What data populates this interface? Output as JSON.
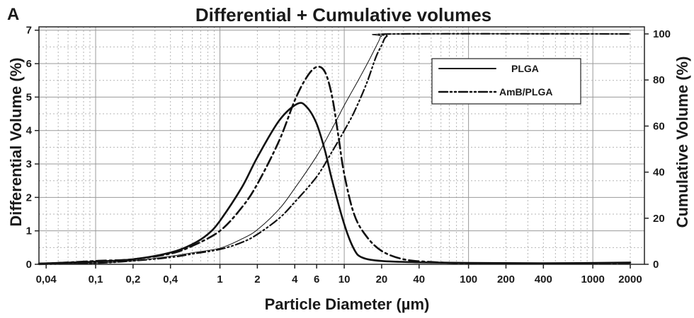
{
  "chart_data": {
    "type": "line",
    "panel_label": "A",
    "title": "Differential + Cumulative volumes",
    "xlabel": "Particle Diameter (µm)",
    "ylabel_left": "Differential Volume (%)",
    "ylabel_right": "Cumulative Volume (%)",
    "x_scale": "log",
    "xlim": [
      0.035,
      2600
    ],
    "ylim_left": [
      0,
      7.1
    ],
    "ylim_right": [
      0,
      100
    ],
    "grid": true,
    "legend_position": "top-right",
    "x_ticks": [
      {
        "value": 0.04,
        "label": "0,04"
      },
      {
        "value": 0.1,
        "label": "0,1"
      },
      {
        "value": 0.2,
        "label": "0,2"
      },
      {
        "value": 0.4,
        "label": "0,4"
      },
      {
        "value": 1,
        "label": "1"
      },
      {
        "value": 2,
        "label": "2"
      },
      {
        "value": 4,
        "label": "4"
      },
      {
        "value": 6,
        "label": "6"
      },
      {
        "value": 10,
        "label": "10"
      },
      {
        "value": 20,
        "label": "20"
      },
      {
        "value": 40,
        "label": "40"
      },
      {
        "value": 100,
        "label": "100"
      },
      {
        "value": 200,
        "label": "200"
      },
      {
        "value": 400,
        "label": "400"
      },
      {
        "value": 1000,
        "label": "1000"
      },
      {
        "value": 2000,
        "label": "2000"
      }
    ],
    "y_ticks_left": [
      {
        "value": 0,
        "label": "0"
      },
      {
        "value": 1,
        "label": "1"
      },
      {
        "value": 2,
        "label": "2"
      },
      {
        "value": 3,
        "label": "3"
      },
      {
        "value": 4,
        "label": "4"
      },
      {
        "value": 5,
        "label": "5"
      },
      {
        "value": 6,
        "label": "6"
      },
      {
        "value": 7,
        "label": "7"
      }
    ],
    "y_ticks_right": [
      {
        "value": 0,
        "label": "0"
      },
      {
        "value": 20,
        "label": "20"
      },
      {
        "value": 40,
        "label": "40"
      },
      {
        "value": 60,
        "label": "60"
      },
      {
        "value": 80,
        "label": "80"
      },
      {
        "value": 100,
        "label": "100"
      }
    ],
    "series": [
      {
        "name": "PLGA",
        "kind": "differential",
        "axis": "left",
        "line_style": "solid",
        "line_weight": "thick",
        "points": [
          [
            0.035,
            0.02
          ],
          [
            0.05,
            0.04
          ],
          [
            0.1,
            0.08
          ],
          [
            0.2,
            0.15
          ],
          [
            0.4,
            0.35
          ],
          [
            0.6,
            0.6
          ],
          [
            0.8,
            0.9
          ],
          [
            1,
            1.3
          ],
          [
            1.5,
            2.3
          ],
          [
            2,
            3.2
          ],
          [
            3,
            4.3
          ],
          [
            4.2,
            4.8
          ],
          [
            5,
            4.7
          ],
          [
            6,
            4.2
          ],
          [
            7,
            3.4
          ],
          [
            8,
            2.5
          ],
          [
            10,
            1.2
          ],
          [
            12,
            0.45
          ],
          [
            14,
            0.2
          ],
          [
            20,
            0.1
          ],
          [
            40,
            0.06
          ],
          [
            100,
            0.04
          ],
          [
            400,
            0.03
          ],
          [
            2000,
            0.05
          ]
        ]
      },
      {
        "name": "AmB/PLGA",
        "kind": "differential",
        "axis": "left",
        "line_style": "dash-dot",
        "line_weight": "thick",
        "points": [
          [
            0.035,
            0.02
          ],
          [
            0.05,
            0.04
          ],
          [
            0.1,
            0.1
          ],
          [
            0.2,
            0.15
          ],
          [
            0.4,
            0.32
          ],
          [
            0.6,
            0.55
          ],
          [
            1,
            1
          ],
          [
            1.5,
            1.7
          ],
          [
            2,
            2.4
          ],
          [
            3,
            3.7
          ],
          [
            4,
            4.9
          ],
          [
            5,
            5.6
          ],
          [
            6,
            5.9
          ],
          [
            7,
            5.75
          ],
          [
            8,
            5
          ],
          [
            9,
            3.8
          ],
          [
            10,
            2.7
          ],
          [
            12,
            1.5
          ],
          [
            15,
            0.85
          ],
          [
            20,
            0.4
          ],
          [
            30,
            0.15
          ],
          [
            50,
            0.07
          ],
          [
            100,
            0.03
          ],
          [
            400,
            0.02
          ],
          [
            2000,
            0.02
          ]
        ]
      },
      {
        "name": "PLGA",
        "kind": "cumulative",
        "axis": "right",
        "line_style": "solid",
        "line_weight": "thin",
        "points": [
          [
            0.035,
            0
          ],
          [
            0.1,
            0.5
          ],
          [
            0.2,
            1.5
          ],
          [
            0.4,
            3.5
          ],
          [
            0.6,
            5
          ],
          [
            1,
            7
          ],
          [
            1.5,
            11
          ],
          [
            2,
            15
          ],
          [
            3,
            24
          ],
          [
            4,
            33
          ],
          [
            6,
            47
          ],
          [
            8,
            59
          ],
          [
            10,
            69
          ],
          [
            13,
            80
          ],
          [
            16,
            89
          ],
          [
            19,
            97
          ],
          [
            20,
            99
          ],
          [
            25,
            100
          ],
          [
            2000,
            100
          ]
        ]
      },
      {
        "name": "AmB/PLGA",
        "kind": "cumulative",
        "axis": "right",
        "line_style": "dash-dot-dot",
        "line_weight": "medium",
        "points": [
          [
            0.035,
            0
          ],
          [
            0.1,
            0.5
          ],
          [
            0.2,
            1.5
          ],
          [
            0.4,
            3
          ],
          [
            0.6,
            4.5
          ],
          [
            1,
            6.5
          ],
          [
            1.5,
            9.5
          ],
          [
            2,
            13
          ],
          [
            3,
            20
          ],
          [
            4,
            27
          ],
          [
            6,
            38
          ],
          [
            8,
            49
          ],
          [
            10,
            58
          ],
          [
            12,
            66
          ],
          [
            15,
            78
          ],
          [
            18,
            90
          ],
          [
            20,
            95
          ],
          [
            22,
            99
          ],
          [
            28,
            100
          ],
          [
            2000,
            100
          ]
        ]
      }
    ]
  }
}
